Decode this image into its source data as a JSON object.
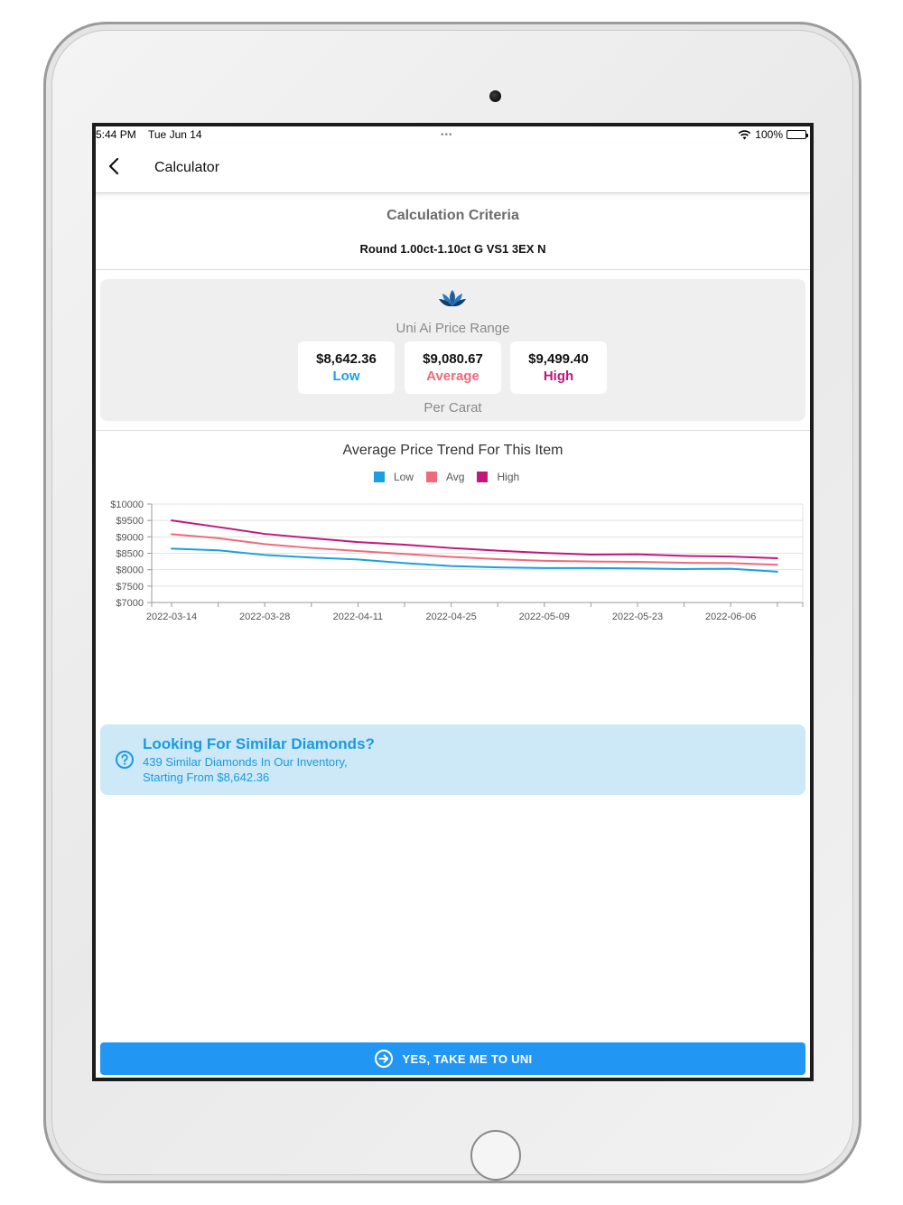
{
  "status_bar": {
    "time": "5:44 PM",
    "date": "Tue Jun 14",
    "dots": "•••",
    "battery": "100%"
  },
  "nav": {
    "title": "Calculator",
    "back_icon": "chevron-left-icon"
  },
  "criteria": {
    "title": "Calculation Criteria",
    "value": "Round 1.00ct-1.10ct G VS1 3EX N"
  },
  "price_range": {
    "logo_icon": "lotus-logo-icon",
    "title": "Uni Ai Price Range",
    "low": {
      "amount": "$8,642.36",
      "label": "Low",
      "color": "#1aa0e0"
    },
    "average": {
      "amount": "$9,080.67",
      "label": "Average",
      "color": "#f06a7a"
    },
    "high": {
      "amount": "$9,499.40",
      "label": "High",
      "color": "#c2187a"
    },
    "per_carat": "Per Carat"
  },
  "chart_data": {
    "type": "line",
    "title": "Average Price Trend For This Item",
    "x": [
      "2022-03-14",
      "2022-03-21",
      "2022-03-28",
      "2022-04-04",
      "2022-04-11",
      "2022-04-18",
      "2022-04-25",
      "2022-05-02",
      "2022-05-09",
      "2022-05-16",
      "2022-05-23",
      "2022-05-30",
      "2022-06-06",
      "2022-06-13"
    ],
    "x_tick_labels": [
      "2022-03-14",
      "2022-03-28",
      "2022-04-11",
      "2022-04-25",
      "2022-05-09",
      "2022-05-23",
      "2022-06-06"
    ],
    "y_tick_labels": [
      "$10000",
      "$9500",
      "$9000",
      "$8500",
      "$8000",
      "$7500",
      "$7000"
    ],
    "ylim": [
      7000,
      10000
    ],
    "grid": true,
    "legend_position": "top-center",
    "series": [
      {
        "name": "Low",
        "color": "#1aa0e0",
        "values": [
          8640,
          8590,
          8450,
          8370,
          8310,
          8200,
          8110,
          8070,
          8050,
          8050,
          8040,
          8020,
          8030,
          7940
        ]
      },
      {
        "name": "Avg",
        "color": "#f06a7a",
        "values": [
          9080,
          8960,
          8780,
          8660,
          8570,
          8480,
          8390,
          8320,
          8270,
          8250,
          8240,
          8210,
          8200,
          8150
        ]
      },
      {
        "name": "High",
        "color": "#c2187a",
        "values": [
          9500,
          9300,
          9090,
          8960,
          8840,
          8760,
          8660,
          8580,
          8510,
          8460,
          8470,
          8420,
          8400,
          8350
        ]
      }
    ]
  },
  "similar": {
    "icon": "question-circle-icon",
    "title": "Looking For Similar Diamonds?",
    "line1": "439 Similar Diamonds In Our Inventory,",
    "line2": "Starting From $8,642.36"
  },
  "cta": {
    "label": "YES, TAKE ME TO UNI",
    "icon": "arrow-circle-right-icon"
  }
}
